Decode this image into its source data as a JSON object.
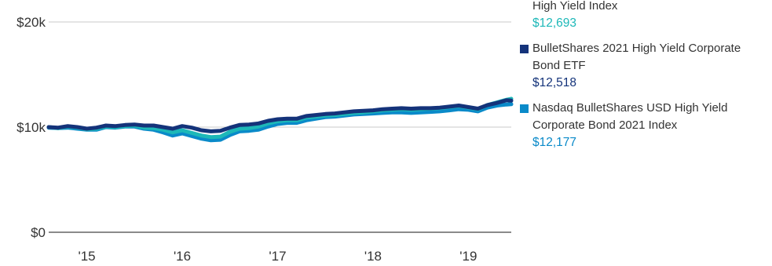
{
  "chart_data": {
    "type": "line",
    "x_ticks": [
      "'15",
      "'16",
      "'17",
      "'18",
      "'19"
    ],
    "y_ticks": [
      "$0",
      "$10k",
      "$20k"
    ],
    "ylim": [
      0,
      20000
    ],
    "xlim": [
      2014.6,
      2019.45
    ],
    "grid": "horizontal",
    "legend_placement": "right",
    "series": [
      {
        "name": "BulletShares 2021 High Yield Corporate Bond ETF",
        "color": "#14337a",
        "ending_value": "$12,518",
        "x": [
          2014.6,
          2014.7,
          2014.8,
          2014.9,
          2015.0,
          2015.1,
          2015.2,
          2015.3,
          2015.4,
          2015.5,
          2015.6,
          2015.7,
          2015.8,
          2015.9,
          2016.0,
          2016.1,
          2016.2,
          2016.3,
          2016.4,
          2016.5,
          2016.6,
          2016.7,
          2016.8,
          2016.9,
          2017.0,
          2017.1,
          2017.2,
          2017.3,
          2017.4,
          2017.5,
          2017.6,
          2017.7,
          2017.8,
          2017.9,
          2018.0,
          2018.1,
          2018.2,
          2018.3,
          2018.4,
          2018.5,
          2018.6,
          2018.7,
          2018.8,
          2018.9,
          2019.0,
          2019.1,
          2019.2,
          2019.3,
          2019.4,
          2019.45
        ],
        "y": [
          10000,
          9950,
          10100,
          10000,
          9850,
          9950,
          10150,
          10100,
          10200,
          10250,
          10150,
          10150,
          10000,
          9850,
          10100,
          9950,
          9700,
          9600,
          9650,
          9950,
          10200,
          10250,
          10350,
          10600,
          10750,
          10800,
          10800,
          11050,
          11150,
          11250,
          11300,
          11400,
          11500,
          11550,
          11600,
          11700,
          11750,
          11800,
          11750,
          11800,
          11800,
          11850,
          11950,
          12050,
          11900,
          11750,
          12100,
          12300,
          12550,
          12518
        ]
      },
      {
        "name": "Nasdaq BulletShares USD High Yield Corporate Bond 2021 Index",
        "color": "#0a8ac9",
        "ending_value": "$12,177",
        "x": [
          2014.6,
          2014.7,
          2014.8,
          2014.9,
          2015.0,
          2015.1,
          2015.2,
          2015.3,
          2015.4,
          2015.5,
          2015.6,
          2015.7,
          2015.8,
          2015.9,
          2016.0,
          2016.1,
          2016.2,
          2016.3,
          2016.4,
          2016.5,
          2016.6,
          2016.7,
          2016.8,
          2016.9,
          2017.0,
          2017.1,
          2017.2,
          2017.3,
          2017.4,
          2017.5,
          2017.6,
          2017.7,
          2017.8,
          2017.9,
          2018.0,
          2018.1,
          2018.2,
          2018.3,
          2018.4,
          2018.5,
          2018.6,
          2018.7,
          2018.8,
          2018.9,
          2019.0,
          2019.1,
          2019.2,
          2019.3,
          2019.4,
          2019.45
        ],
        "y": [
          9950,
          9900,
          9950,
          9850,
          9750,
          9750,
          10000,
          9950,
          10050,
          10050,
          9850,
          9750,
          9500,
          9200,
          9400,
          9150,
          8900,
          8750,
          8800,
          9250,
          9600,
          9650,
          9750,
          10050,
          10300,
          10400,
          10400,
          10650,
          10800,
          10950,
          11000,
          11100,
          11200,
          11250,
          11300,
          11350,
          11400,
          11400,
          11350,
          11400,
          11450,
          11500,
          11600,
          11700,
          11650,
          11500,
          11850,
          12050,
          12150,
          12177
        ]
      },
      {
        "name": "High Yield Index",
        "color": "#1db8b8",
        "ending_value": "$12,693",
        "x": [
          2014.6,
          2014.7,
          2014.8,
          2014.9,
          2015.0,
          2015.1,
          2015.2,
          2015.3,
          2015.4,
          2015.5,
          2015.6,
          2015.7,
          2015.8,
          2015.9,
          2016.0,
          2016.1,
          2016.2,
          2016.3,
          2016.4,
          2016.5,
          2016.6,
          2016.7,
          2016.8,
          2016.9,
          2017.0,
          2017.1,
          2017.2,
          2017.3,
          2017.4,
          2017.5,
          2017.6,
          2017.7,
          2017.8,
          2017.9,
          2018.0,
          2018.1,
          2018.2,
          2018.3,
          2018.4,
          2018.5,
          2018.6,
          2018.7,
          2018.8,
          2018.9,
          2019.0,
          2019.1,
          2019.2,
          2019.3,
          2019.4,
          2019.45
        ],
        "y": [
          10000,
          9900,
          10050,
          9950,
          9800,
          9850,
          10050,
          10000,
          10100,
          10150,
          9950,
          9900,
          9750,
          9500,
          9700,
          9450,
          9200,
          9050,
          9100,
          9550,
          9850,
          9900,
          10050,
          10350,
          10550,
          10650,
          10650,
          10900,
          11000,
          11100,
          11150,
          11250,
          11350,
          11400,
          11500,
          11600,
          11650,
          11700,
          11650,
          11700,
          11750,
          11800,
          11900,
          12000,
          11850,
          11700,
          12100,
          12350,
          12600,
          12693
        ]
      }
    ]
  },
  "legend": {
    "top_partial": {
      "label": "High Yield Index",
      "value": "$12,693",
      "color": "#1db8b8"
    },
    "entries": [
      {
        "label": "BulletShares 2021 High Yield Corporate Bond ETF",
        "value": "$12,518",
        "swatch_color": "#14337a",
        "value_color": "#14337a"
      },
      {
        "label": "Nasdaq BulletShares USD High Yield Corporate Bond 2021 Index",
        "value": "$12,177",
        "swatch_color": "#0a8ac9",
        "value_color": "#0a8ac9"
      }
    ]
  }
}
